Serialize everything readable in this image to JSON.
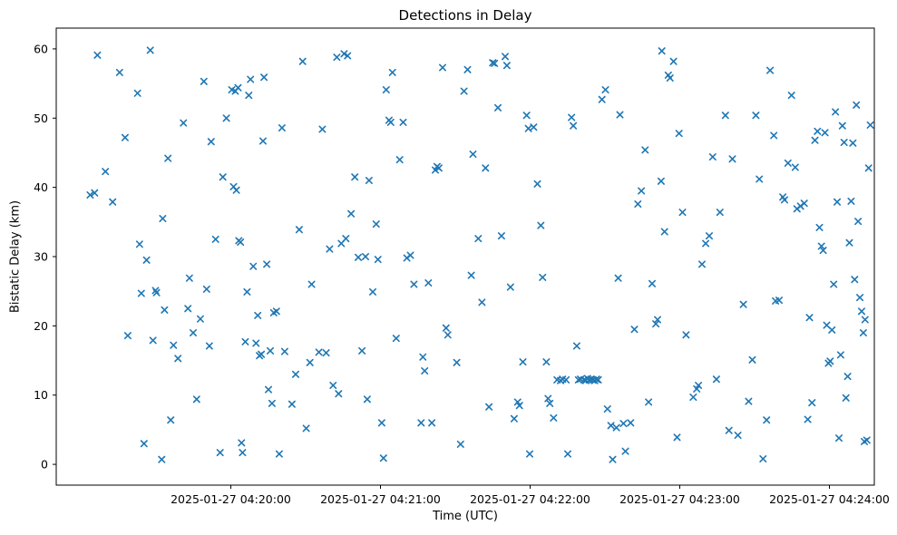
{
  "chart_data": {
    "type": "scatter",
    "title": "Detections in Delay",
    "xlabel": "Time (UTC)",
    "ylabel": "Bistatic Delay (km)",
    "marker": "x",
    "marker_color": "#1f77b4",
    "grid": false,
    "legend": "none",
    "x_unit": "seconds relative to 2025-01-27 04:20:00 UTC",
    "xlim": [
      -70,
      258
    ],
    "ylim": [
      -3,
      63
    ],
    "x_tick_positions": [
      0,
      60,
      120,
      180,
      240
    ],
    "x_tick_labels": [
      "2025-01-27 04:20:00",
      "2025-01-27 04:21:00",
      "2025-01-27 04:22:00",
      "2025-01-27 04:23:00",
      "2025-01-27 04:24:00"
    ],
    "y_tick_positions": [
      0,
      10,
      20,
      30,
      40,
      50,
      60
    ],
    "y_tick_labels": [
      "0",
      "10",
      "20",
      "30",
      "40",
      "50",
      "60"
    ],
    "points": [
      [
        -56.4,
        38.9
      ],
      [
        -54.6,
        39.2
      ],
      [
        -53.5,
        59.1
      ],
      [
        -50.3,
        42.3
      ],
      [
        -47.4,
        37.9
      ],
      [
        -44.6,
        56.6
      ],
      [
        -42.4,
        47.2
      ],
      [
        -41.3,
        18.6
      ],
      [
        -37.4,
        53.6
      ],
      [
        -36.6,
        31.8
      ],
      [
        -35.9,
        24.7
      ],
      [
        -34.8,
        3.0
      ],
      [
        -33.8,
        29.5
      ],
      [
        -32.3,
        59.8
      ],
      [
        -31.2,
        17.9
      ],
      [
        -30.2,
        25.1
      ],
      [
        -29.8,
        24.8
      ],
      [
        -27.7,
        0.7
      ],
      [
        -27.3,
        35.5
      ],
      [
        -26.6,
        22.3
      ],
      [
        -25.2,
        44.2
      ],
      [
        -24.1,
        6.4
      ],
      [
        -23.0,
        17.2
      ],
      [
        -21.2,
        15.3
      ],
      [
        -19.0,
        49.3
      ],
      [
        -17.2,
        22.5
      ],
      [
        -16.6,
        26.9
      ],
      [
        -15.1,
        19.0
      ],
      [
        -13.7,
        9.4
      ],
      [
        -12.2,
        21.0
      ],
      [
        -10.8,
        55.3
      ],
      [
        -9.7,
        25.3
      ],
      [
        -8.6,
        17.1
      ],
      [
        -7.9,
        46.6
      ],
      [
        -6.1,
        32.5
      ],
      [
        -4.3,
        1.7
      ],
      [
        -3.2,
        41.5
      ],
      [
        -1.8,
        50.0
      ],
      [
        0.4,
        54.1
      ],
      [
        1.1,
        40.1
      ],
      [
        1.8,
        53.9
      ],
      [
        2.2,
        39.6
      ],
      [
        2.9,
        54.4
      ],
      [
        3.2,
        32.3
      ],
      [
        3.9,
        32.1
      ],
      [
        4.3,
        3.1
      ],
      [
        4.7,
        1.7
      ],
      [
        5.8,
        17.7
      ],
      [
        6.5,
        24.9
      ],
      [
        7.2,
        53.3
      ],
      [
        7.9,
        55.6
      ],
      [
        9.0,
        28.6
      ],
      [
        10.1,
        17.5
      ],
      [
        10.8,
        21.5
      ],
      [
        11.5,
        15.7
      ],
      [
        12.2,
        15.9
      ],
      [
        12.9,
        46.7
      ],
      [
        13.3,
        55.9
      ],
      [
        14.4,
        28.9
      ],
      [
        15.1,
        10.8
      ],
      [
        15.8,
        16.4
      ],
      [
        16.5,
        8.8
      ],
      [
        17.2,
        21.9
      ],
      [
        18.3,
        22.1
      ],
      [
        19.4,
        1.5
      ],
      [
        20.5,
        48.6
      ],
      [
        21.6,
        16.3
      ],
      [
        24.5,
        8.7
      ],
      [
        26.0,
        13.0
      ],
      [
        27.4,
        33.9
      ],
      [
        28.8,
        58.2
      ],
      [
        30.2,
        5.2
      ],
      [
        31.7,
        14.7
      ],
      [
        32.4,
        26.0
      ],
      [
        35.3,
        16.2
      ],
      [
        36.7,
        48.4
      ],
      [
        38.2,
        16.1
      ],
      [
        39.6,
        31.1
      ],
      [
        41.0,
        11.4
      ],
      [
        42.5,
        58.8
      ],
      [
        43.2,
        10.2
      ],
      [
        44.3,
        31.9
      ],
      [
        45.4,
        59.3
      ],
      [
        46.1,
        32.6
      ],
      [
        46.8,
        59.0
      ],
      [
        48.2,
        36.2
      ],
      [
        49.7,
        41.5
      ],
      [
        51.1,
        29.9
      ],
      [
        52.6,
        16.4
      ],
      [
        54.0,
        30.0
      ],
      [
        54.7,
        9.4
      ],
      [
        55.4,
        41.0
      ],
      [
        56.9,
        24.9
      ],
      [
        58.3,
        34.7
      ],
      [
        59.0,
        29.6
      ],
      [
        60.5,
        6.0
      ],
      [
        61.2,
        0.9
      ],
      [
        62.3,
        54.1
      ],
      [
        63.4,
        49.7
      ],
      [
        64.1,
        49.4
      ],
      [
        64.8,
        56.6
      ],
      [
        66.3,
        18.2
      ],
      [
        67.7,
        44.0
      ],
      [
        69.1,
        49.4
      ],
      [
        70.6,
        29.8
      ],
      [
        72.0,
        30.2
      ],
      [
        73.4,
        26.0
      ],
      [
        76.3,
        6.0
      ],
      [
        77.0,
        15.5
      ],
      [
        77.7,
        13.5
      ],
      [
        79.2,
        26.2
      ],
      [
        80.6,
        6.0
      ],
      [
        82.0,
        42.5
      ],
      [
        82.7,
        43.0
      ],
      [
        83.4,
        42.8
      ],
      [
        84.9,
        57.3
      ],
      [
        86.3,
        19.7
      ],
      [
        87.0,
        18.7
      ],
      [
        90.6,
        14.7
      ],
      [
        92.1,
        2.9
      ],
      [
        93.5,
        53.9
      ],
      [
        94.9,
        57.0
      ],
      [
        96.4,
        27.3
      ],
      [
        97.1,
        44.8
      ],
      [
        99.2,
        32.6
      ],
      [
        100.7,
        23.4
      ],
      [
        102.1,
        42.8
      ],
      [
        103.5,
        8.3
      ],
      [
        105.0,
        58.0
      ],
      [
        105.7,
        57.9
      ],
      [
        107.1,
        51.5
      ],
      [
        108.5,
        33.0
      ],
      [
        110.0,
        58.9
      ],
      [
        110.7,
        57.6
      ],
      [
        112.1,
        25.6
      ],
      [
        113.6,
        6.6
      ],
      [
        115.0,
        9.0
      ],
      [
        115.7,
        8.5
      ],
      [
        117.1,
        14.8
      ],
      [
        118.6,
        50.4
      ],
      [
        119.3,
        48.5
      ],
      [
        119.8,
        1.5
      ],
      [
        121.4,
        48.7
      ],
      [
        122.9,
        40.5
      ],
      [
        124.3,
        34.5
      ],
      [
        125.0,
        27.0
      ],
      [
        126.5,
        14.8
      ],
      [
        127.2,
        9.5
      ],
      [
        127.9,
        8.8
      ],
      [
        129.4,
        6.7
      ],
      [
        130.8,
        12.2
      ],
      [
        132.2,
        12.1
      ],
      [
        133.0,
        12.3
      ],
      [
        134.4,
        12.2
      ],
      [
        135.1,
        1.5
      ],
      [
        136.6,
        50.1
      ],
      [
        137.3,
        48.9
      ],
      [
        138.7,
        17.1
      ],
      [
        139.4,
        12.2
      ],
      [
        140.2,
        12.3
      ],
      [
        141.6,
        12.2
      ],
      [
        142.3,
        12.1
      ],
      [
        143.0,
        12.4
      ],
      [
        143.7,
        12.2
      ],
      [
        144.5,
        12.3
      ],
      [
        145.2,
        12.2
      ],
      [
        145.9,
        12.1
      ],
      [
        146.6,
        12.3
      ],
      [
        147.3,
        12.2
      ],
      [
        148.8,
        52.7
      ],
      [
        150.2,
        54.1
      ],
      [
        151.0,
        8.0
      ],
      [
        152.4,
        5.6
      ],
      [
        153.1,
        0.7
      ],
      [
        154.6,
        5.3
      ],
      [
        155.3,
        26.9
      ],
      [
        156.0,
        50.5
      ],
      [
        157.4,
        5.9
      ],
      [
        158.2,
        1.9
      ],
      [
        160.3,
        6.0
      ],
      [
        161.8,
        19.5
      ],
      [
        163.2,
        37.6
      ],
      [
        164.6,
        39.5
      ],
      [
        166.1,
        45.4
      ],
      [
        167.5,
        9.0
      ],
      [
        168.9,
        26.1
      ],
      [
        170.4,
        20.3
      ],
      [
        171.1,
        20.9
      ],
      [
        172.5,
        40.9
      ],
      [
        172.8,
        59.7
      ],
      [
        173.9,
        33.6
      ],
      [
        175.4,
        56.2
      ],
      [
        176.1,
        55.8
      ],
      [
        177.5,
        58.2
      ],
      [
        178.9,
        3.9
      ],
      [
        179.7,
        47.8
      ],
      [
        181.1,
        36.4
      ],
      [
        182.5,
        18.7
      ],
      [
        185.4,
        9.7
      ],
      [
        186.8,
        10.9
      ],
      [
        187.5,
        11.4
      ],
      [
        188.9,
        28.9
      ],
      [
        190.4,
        31.9
      ],
      [
        191.8,
        33.0
      ],
      [
        193.2,
        44.4
      ],
      [
        194.7,
        12.3
      ],
      [
        196.1,
        36.4
      ],
      [
        198.3,
        50.4
      ],
      [
        199.7,
        4.9
      ],
      [
        201.1,
        44.1
      ],
      [
        203.3,
        4.2
      ],
      [
        205.5,
        23.1
      ],
      [
        207.6,
        9.1
      ],
      [
        209.1,
        15.1
      ],
      [
        210.5,
        50.4
      ],
      [
        211.9,
        41.2
      ],
      [
        213.4,
        0.8
      ],
      [
        214.8,
        6.4
      ],
      [
        216.2,
        56.9
      ],
      [
        217.7,
        47.5
      ],
      [
        218.4,
        23.6
      ],
      [
        219.8,
        23.7
      ],
      [
        221.3,
        38.6
      ],
      [
        222.0,
        38.2
      ],
      [
        223.4,
        43.5
      ],
      [
        224.8,
        53.3
      ],
      [
        226.3,
        42.9
      ],
      [
        227.0,
        36.9
      ],
      [
        228.4,
        37.3
      ],
      [
        229.9,
        37.7
      ],
      [
        231.3,
        6.5
      ],
      [
        232.0,
        21.2
      ],
      [
        233.0,
        8.9
      ],
      [
        234.2,
        46.8
      ],
      [
        235.2,
        48.1
      ],
      [
        236.0,
        34.2
      ],
      [
        236.8,
        31.5
      ],
      [
        237.5,
        30.9
      ],
      [
        238.2,
        47.9
      ],
      [
        238.9,
        20.1
      ],
      [
        239.6,
        14.6
      ],
      [
        240.3,
        14.9
      ],
      [
        241.0,
        19.4
      ],
      [
        241.7,
        26.0
      ],
      [
        242.4,
        50.9
      ],
      [
        243.1,
        37.9
      ],
      [
        243.8,
        3.8
      ],
      [
        244.5,
        15.8
      ],
      [
        245.2,
        48.9
      ],
      [
        245.9,
        46.5
      ],
      [
        246.6,
        9.6
      ],
      [
        247.3,
        12.7
      ],
      [
        248.0,
        32.0
      ],
      [
        248.7,
        38.0
      ],
      [
        249.4,
        46.4
      ],
      [
        250.1,
        26.7
      ],
      [
        250.8,
        51.9
      ],
      [
        251.5,
        35.1
      ],
      [
        252.2,
        24.1
      ],
      [
        252.9,
        22.1
      ],
      [
        253.6,
        19.0
      ],
      [
        254.3,
        20.9
      ],
      [
        254.0,
        3.3
      ],
      [
        255.0,
        3.5
      ],
      [
        255.7,
        42.8
      ],
      [
        256.4,
        49.0
      ]
    ]
  }
}
